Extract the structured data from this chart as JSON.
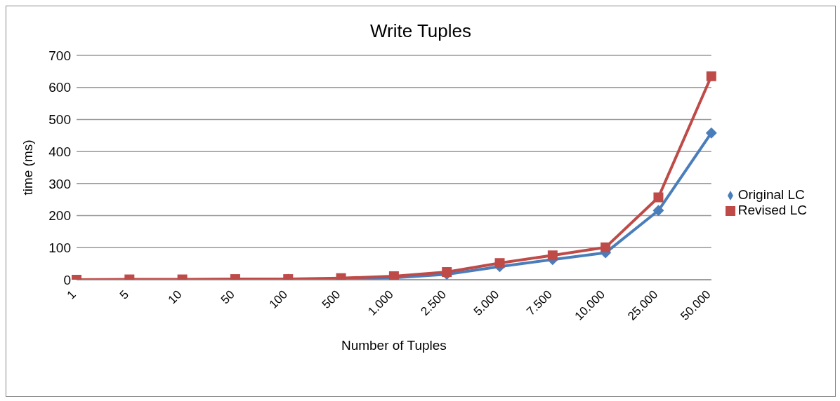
{
  "chart_data": {
    "type": "line",
    "title": "Write Tuples",
    "xlabel": "Number of Tuples",
    "ylabel": "time (ms)",
    "categories": [
      "1",
      "5",
      "10",
      "50",
      "100",
      "500",
      "1.000",
      "2.500",
      "5.000",
      "7.500",
      "10.000",
      "25.000",
      "50.000"
    ],
    "series": [
      {
        "name": "Original LC",
        "color": "#4a7ebb",
        "marker": "diamond",
        "values": [
          null,
          null,
          null,
          null,
          1,
          2,
          6,
          17,
          41,
          63,
          84,
          216,
          458
        ]
      },
      {
        "name": "Revised LC",
        "color": "#be4b48",
        "marker": "square",
        "values": [
          0,
          1,
          1,
          2,
          2,
          5,
          11,
          24,
          52,
          76,
          101,
          257,
          635
        ]
      }
    ],
    "ylim": [
      0,
      700
    ],
    "yticks": [
      0,
      100,
      200,
      300,
      400,
      500,
      600,
      700
    ],
    "grid": "y",
    "legend": "right"
  }
}
